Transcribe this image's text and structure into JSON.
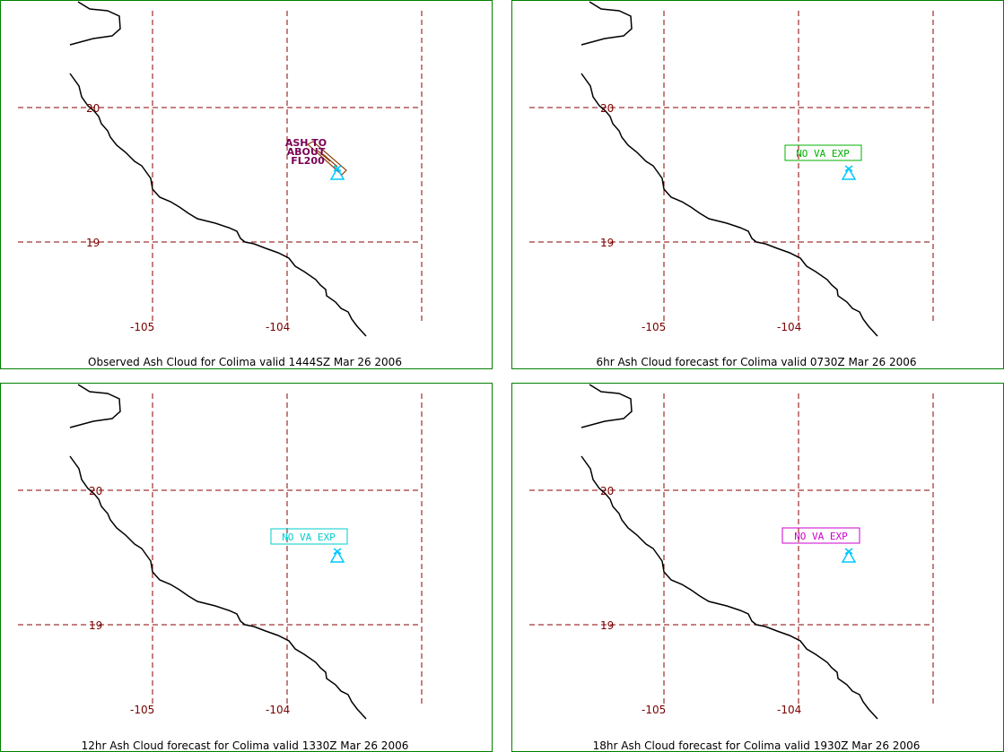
{
  "panels": [
    {
      "caption": "Observed Ash Cloud for Colima valid 1444SZ Mar 26 2006",
      "ash_text": [
        "ASH TO",
        "ABOUT",
        "FL200"
      ]
    },
    {
      "caption": "6hr Ash Cloud forecast for Colima valid 0730Z Mar 26 2006",
      "status_label": "NO VA EXP",
      "status_color": "#00b000"
    },
    {
      "caption": "12hr Ash Cloud forecast for Colima valid 1330Z Mar 26 2006",
      "status_label": "NO VA EXP",
      "status_color": "#00cccc"
    },
    {
      "caption": "18hr Ash Cloud forecast for Colima valid 1930Z Mar 26 2006",
      "status_label": "NO VA EXP",
      "status_color": "#cc00cc"
    }
  ],
  "lat_labels": [
    "20",
    "19"
  ],
  "lon_labels": [
    "-105",
    "-104"
  ],
  "volcano_icon": "volcano-icon",
  "colors": {
    "panel_border": "#008000",
    "grid": "#8b0000",
    "tick_label": "#7a0000",
    "coastline": "#000000",
    "volcano": "#00c8ff",
    "ash_text": "#7a0055",
    "ash_plume": "#8b4513"
  }
}
